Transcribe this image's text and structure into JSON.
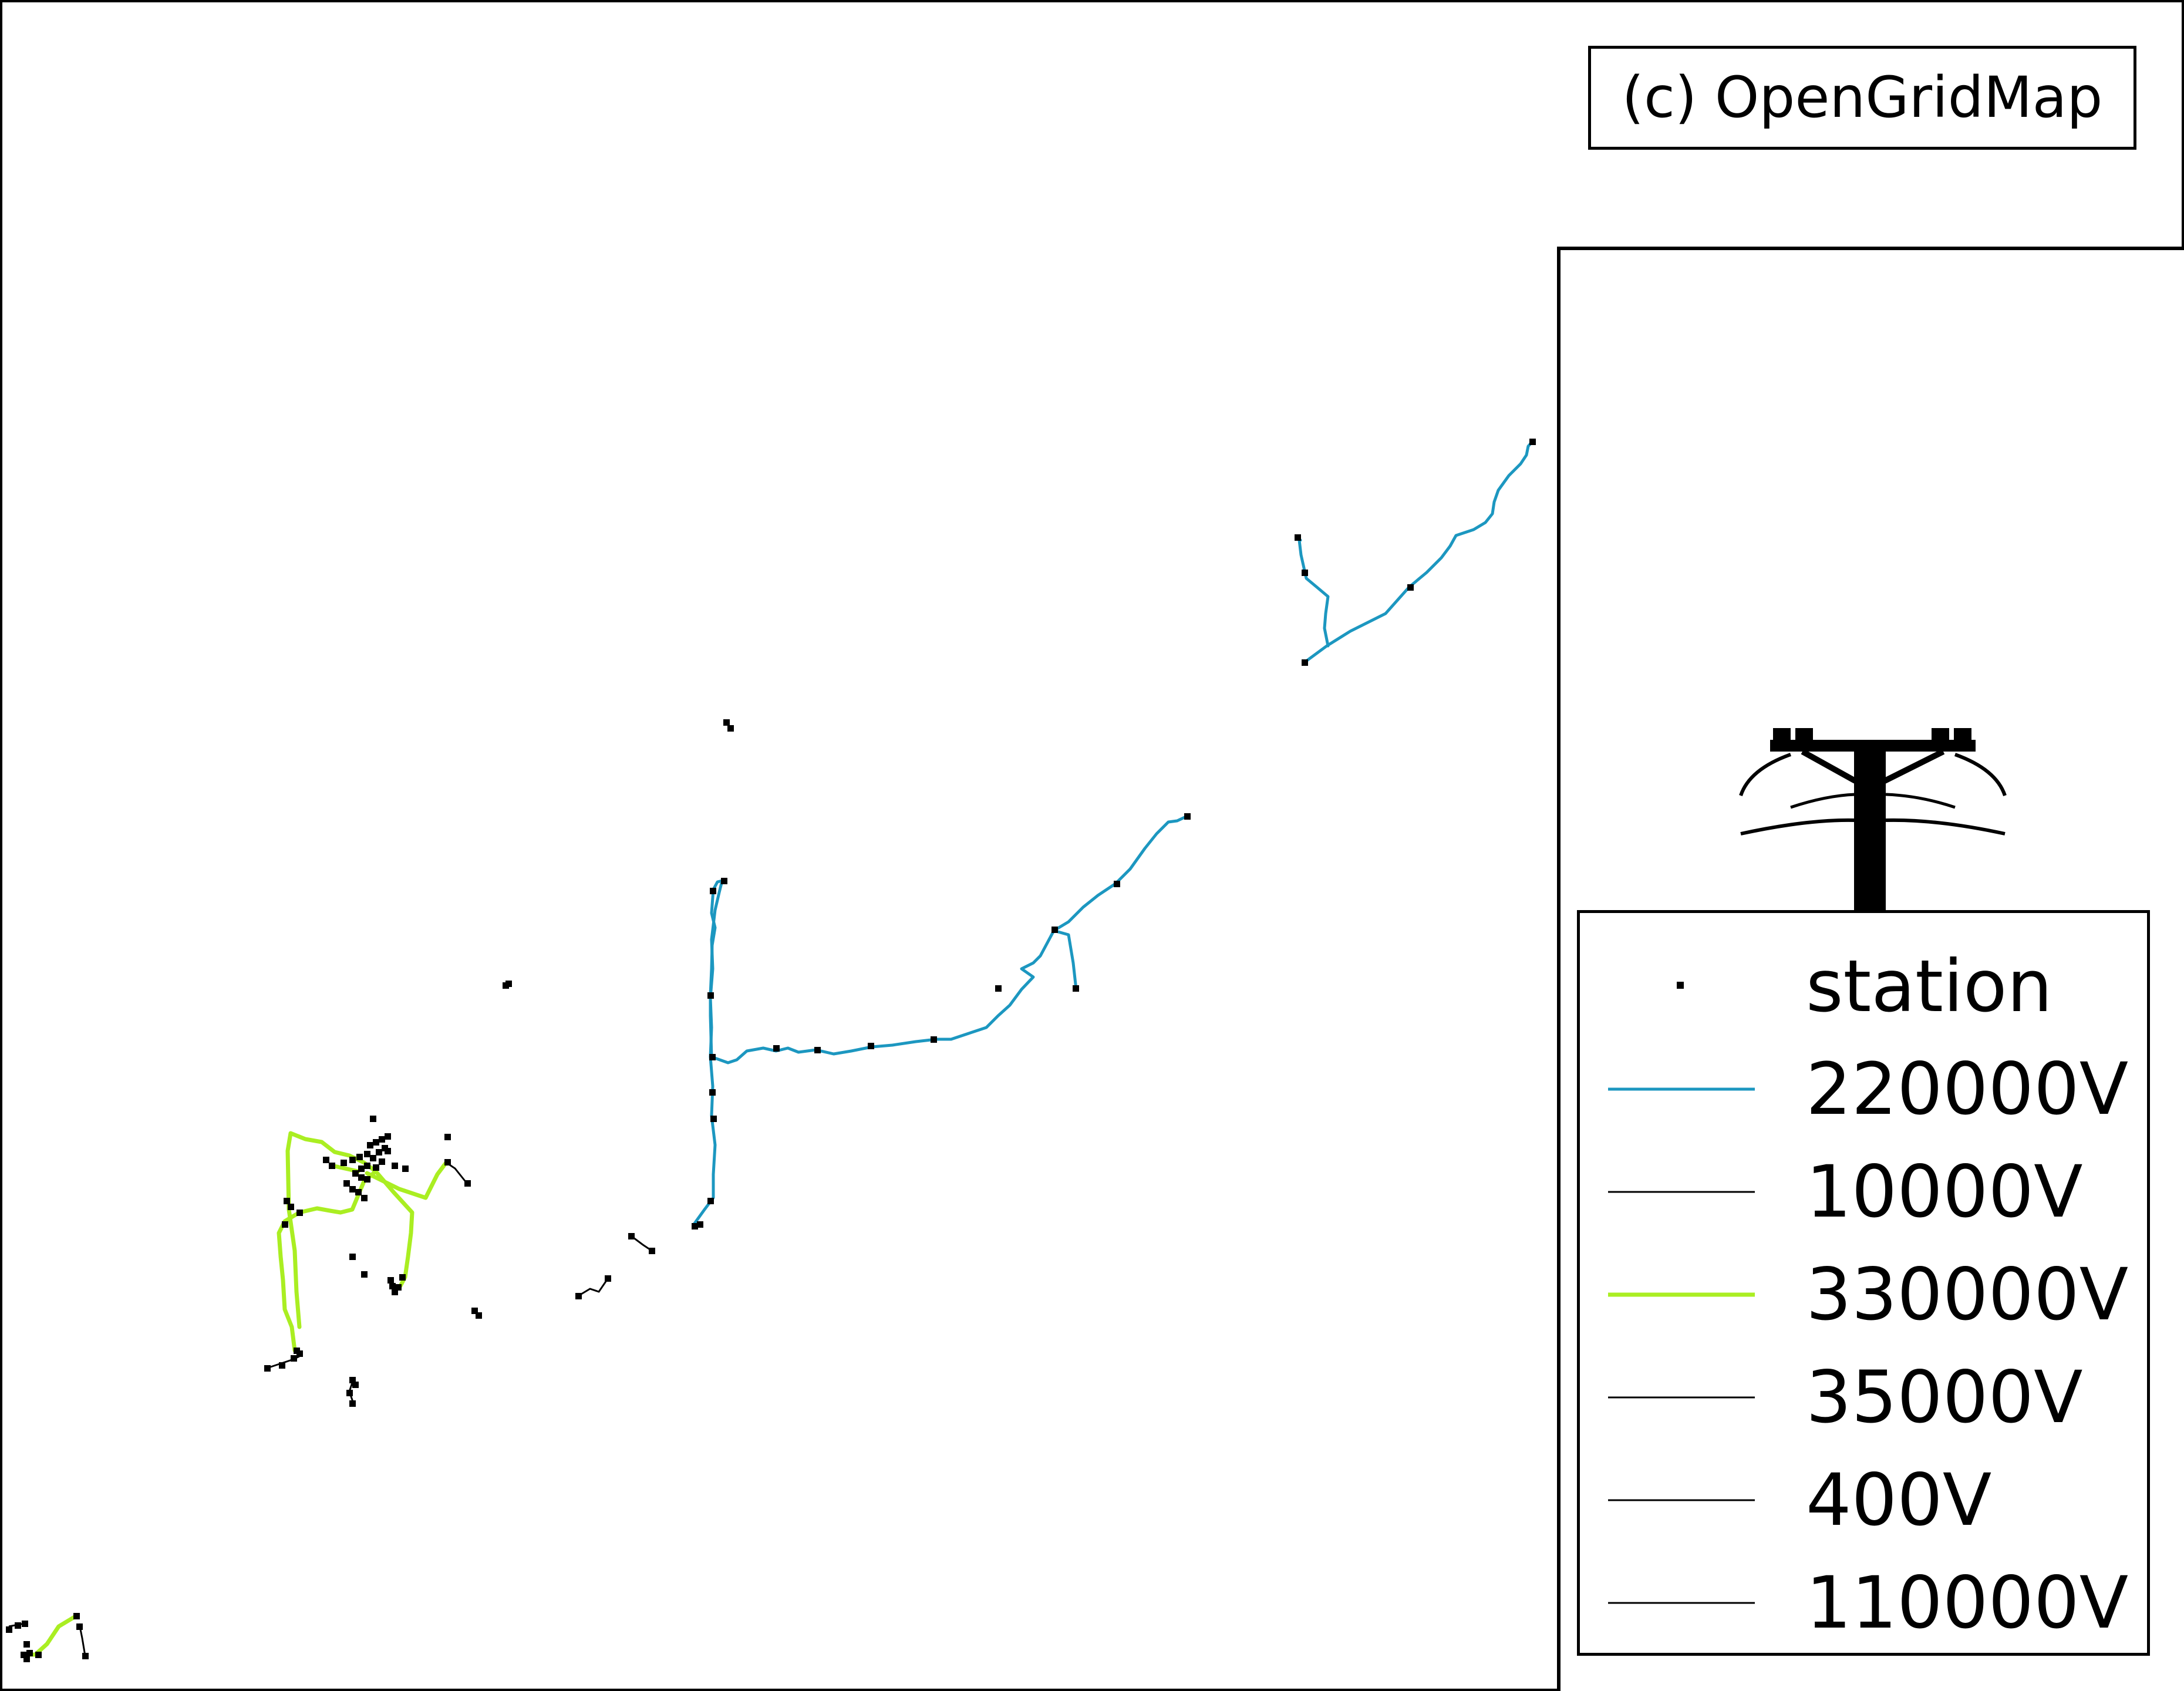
{
  "attribution": "(c) OpenGridMap",
  "legend": {
    "items": [
      {
        "label": "station",
        "kind": "marker",
        "color": "#000000"
      },
      {
        "label": "220000V",
        "kind": "line",
        "color": "#1c97c0"
      },
      {
        "label": "10000V",
        "kind": "line",
        "color": "#000000"
      },
      {
        "label": "330000V",
        "kind": "line",
        "color": "#aaee22"
      },
      {
        "label": "35000V",
        "kind": "line",
        "color": "#000000"
      },
      {
        "label": "400V",
        "kind": "line",
        "color": "#000000"
      },
      {
        "label": "110000V",
        "kind": "line",
        "color": "#000000"
      }
    ]
  },
  "icons": {
    "logo": "power-tower-icon"
  },
  "colors": {
    "line_220kv": "#1c97c0",
    "line_330kv": "#aaee22",
    "line_other": "#000000",
    "station": "#000000",
    "frame": "#000000"
  }
}
